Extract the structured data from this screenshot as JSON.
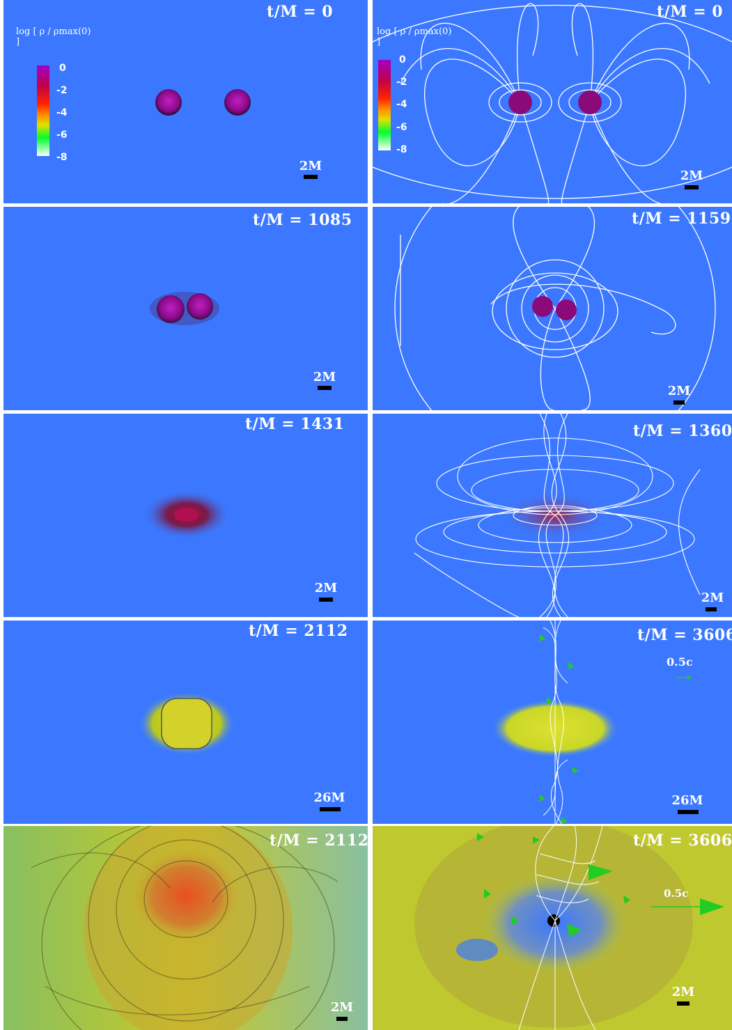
{
  "colorbar": {
    "title": "log [ ρ / ρmax(0) ]",
    "ticks": [
      "0",
      "-2",
      "-4",
      "-6",
      "-8"
    ]
  },
  "panels": {
    "p1": {
      "time": "t/M = 0",
      "scale": "2M"
    },
    "p2": {
      "time": "t/M = 0",
      "scale": "2M"
    },
    "p3": {
      "time": "t/M = 1085",
      "scale": "2M"
    },
    "p4": {
      "time": "t/M = 1159",
      "scale": "2M"
    },
    "p5": {
      "time": "t/M = 1431",
      "scale": "2M"
    },
    "p6": {
      "time": "t/M = 1360",
      "scale": "2M"
    },
    "p7": {
      "time": "t/M = 2112",
      "scale": "26M"
    },
    "p8": {
      "time": "t/M = 3606",
      "scale": "26M",
      "velocity": "0.5c"
    },
    "p9": {
      "time": "t/M = 2112",
      "scale": "2M"
    },
    "p10": {
      "time": "t/M = 3606",
      "scale": "2M",
      "velocity": "0.5c"
    }
  },
  "colors": {
    "background": "#3b78ff",
    "field_lines": "#ffffff",
    "velocity_arrows": "#22cc22"
  }
}
